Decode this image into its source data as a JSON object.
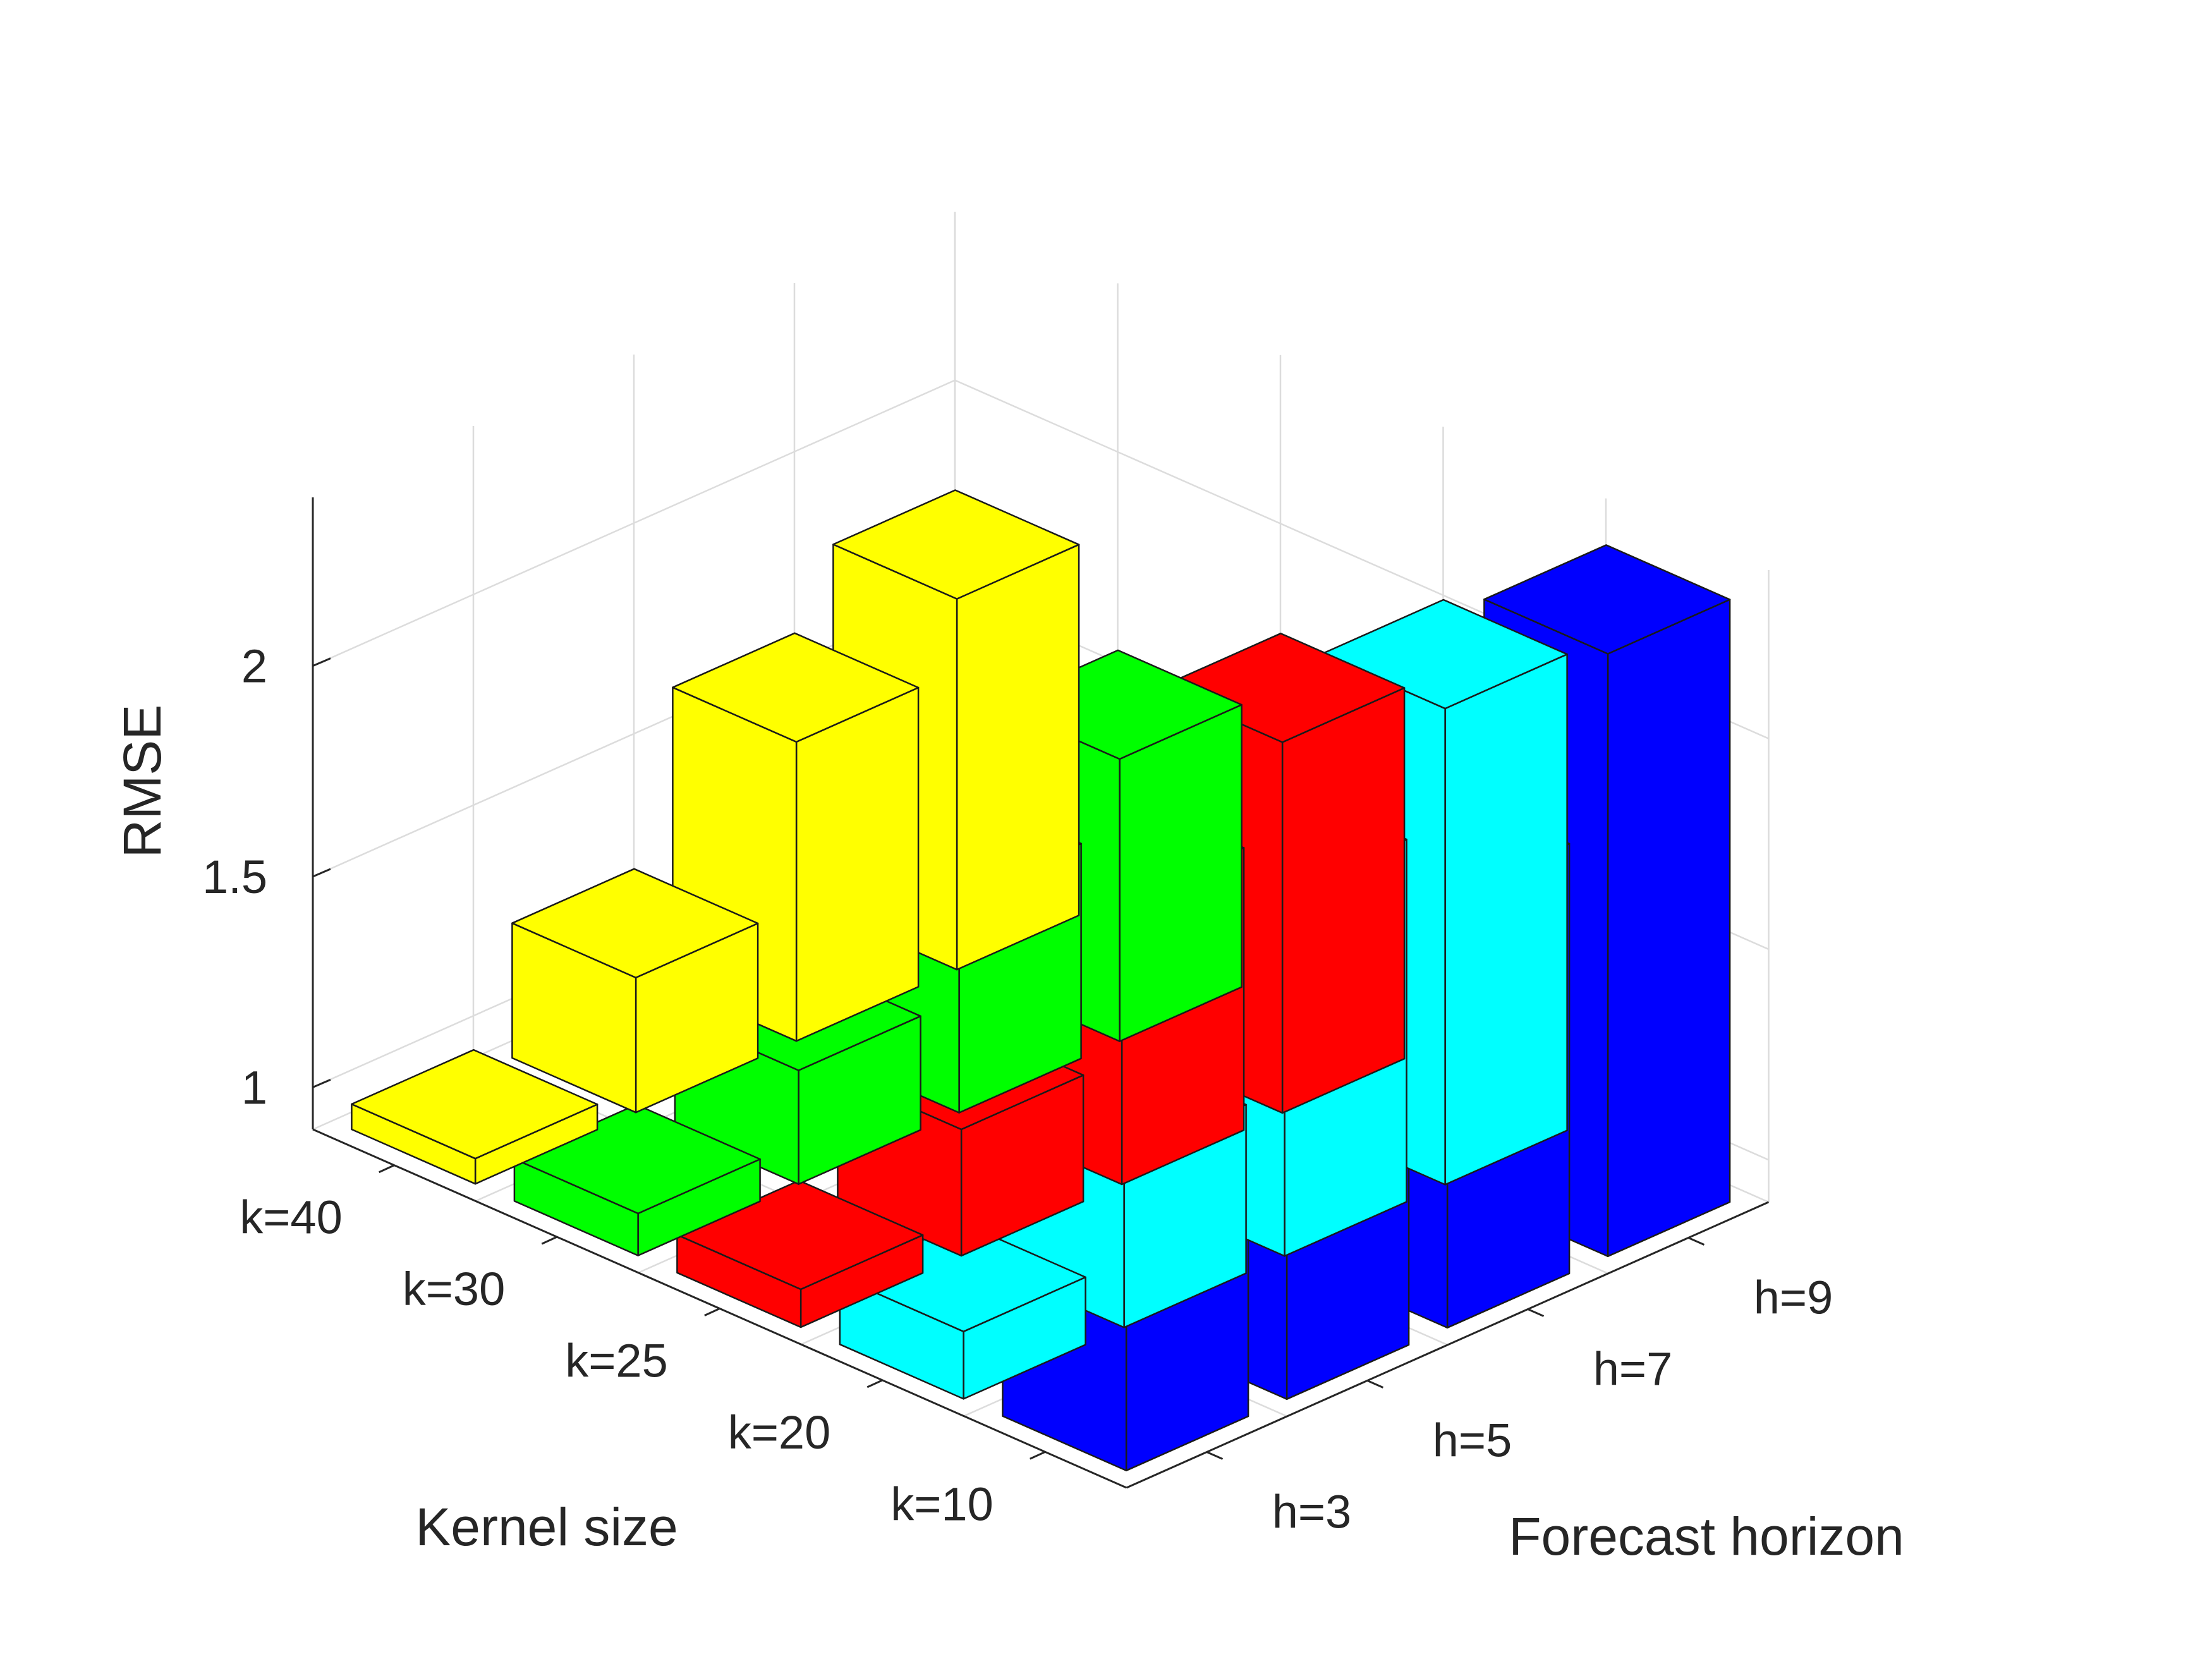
{
  "chart_data": {
    "type": "bar3d",
    "title": "",
    "zlabel": "RMSE",
    "kernel_axis_label": "Kernel size",
    "horizon_axis_label": "Forecast horizon",
    "kernel_categories": [
      "k=10",
      "k=20",
      "k=25",
      "k=30",
      "k=40"
    ],
    "horizon_categories": [
      "h=3",
      "h=5",
      "h=7",
      "h=9"
    ],
    "z_ticks": [
      1,
      1.5,
      2
    ],
    "z_tick_labels": [
      "1",
      "1.5",
      "2"
    ],
    "zlim": [
      0.9,
      2.4
    ],
    "grid": true,
    "colors": [
      "#0000ff",
      "#00ffff",
      "#ff0000",
      "#00ff00",
      "#ffff00"
    ],
    "values": [
      [
        1.47,
        1.53,
        1.92,
        2.33
      ],
      [
        1.06,
        1.3,
        1.76,
        2.03
      ],
      [
        0.99,
        1.2,
        1.57,
        1.78
      ],
      [
        1.0,
        1.17,
        1.41,
        1.57
      ],
      [
        0.96,
        1.22,
        1.61,
        1.78
      ]
    ]
  }
}
